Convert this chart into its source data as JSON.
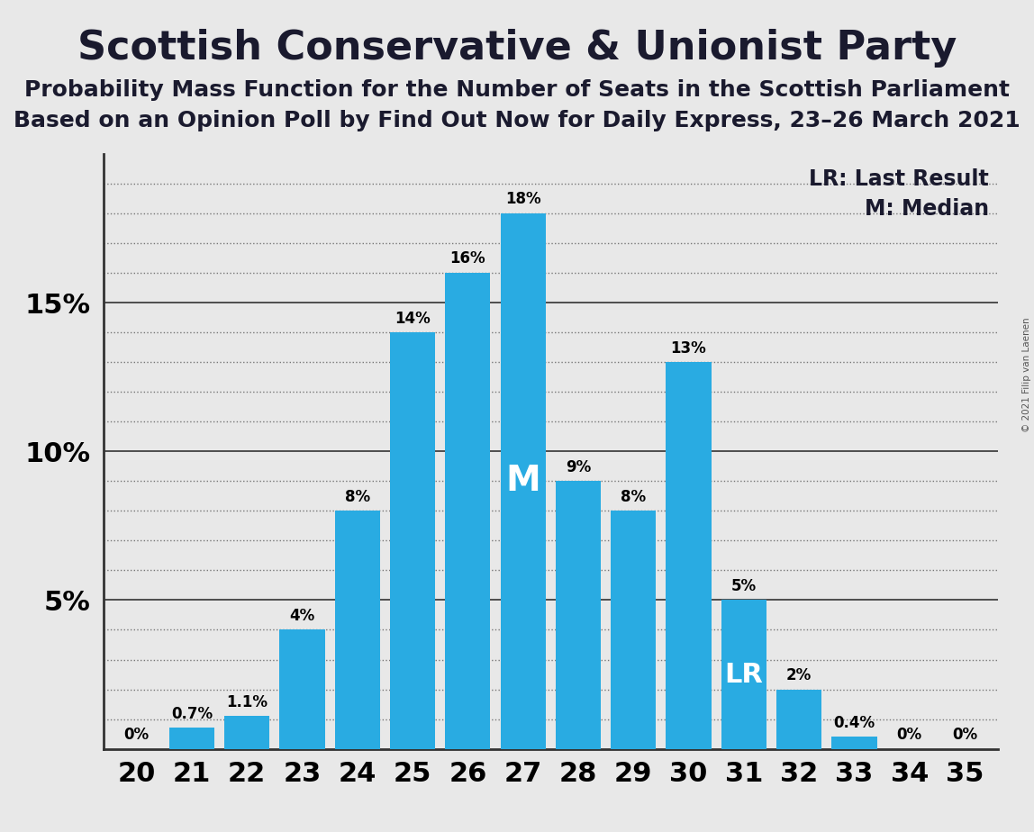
{
  "title": "Scottish Conservative & Unionist Party",
  "subtitle1": "Probability Mass Function for the Number of Seats in the Scottish Parliament",
  "subtitle2": "Based on an Opinion Poll by Find Out Now for Daily Express, 23–26 March 2021",
  "copyright": "© 2021 Filip van Laenen",
  "categories": [
    20,
    21,
    22,
    23,
    24,
    25,
    26,
    27,
    28,
    29,
    30,
    31,
    32,
    33,
    34,
    35
  ],
  "values": [
    0.0,
    0.7,
    1.1,
    4.0,
    8.0,
    14.0,
    16.0,
    18.0,
    9.0,
    8.0,
    13.0,
    5.0,
    2.0,
    0.4,
    0.0,
    0.0
  ],
  "labels": [
    "0%",
    "0.7%",
    "1.1%",
    "4%",
    "8%",
    "14%",
    "16%",
    "18%",
    "9%",
    "8%",
    "13%",
    "5%",
    "2%",
    "0.4%",
    "0%",
    "0%"
  ],
  "bar_color": "#29ABE2",
  "background_color": "#E8E8E8",
  "median_seat": 27,
  "lr_seat": 31,
  "legend_lr": "LR: Last Result",
  "legend_m": "M: Median",
  "ylim": [
    0,
    20
  ],
  "solid_gridlines": [
    5,
    10,
    15
  ],
  "dotted_gridlines": [
    1,
    2,
    3,
    4,
    6,
    7,
    8,
    9,
    11,
    12,
    13,
    14,
    16,
    17,
    18,
    19
  ],
  "title_fontsize": 32,
  "subtitle_fontsize": 18,
  "tick_fontsize": 22,
  "legend_fontsize": 17,
  "label_fontsize": 12
}
